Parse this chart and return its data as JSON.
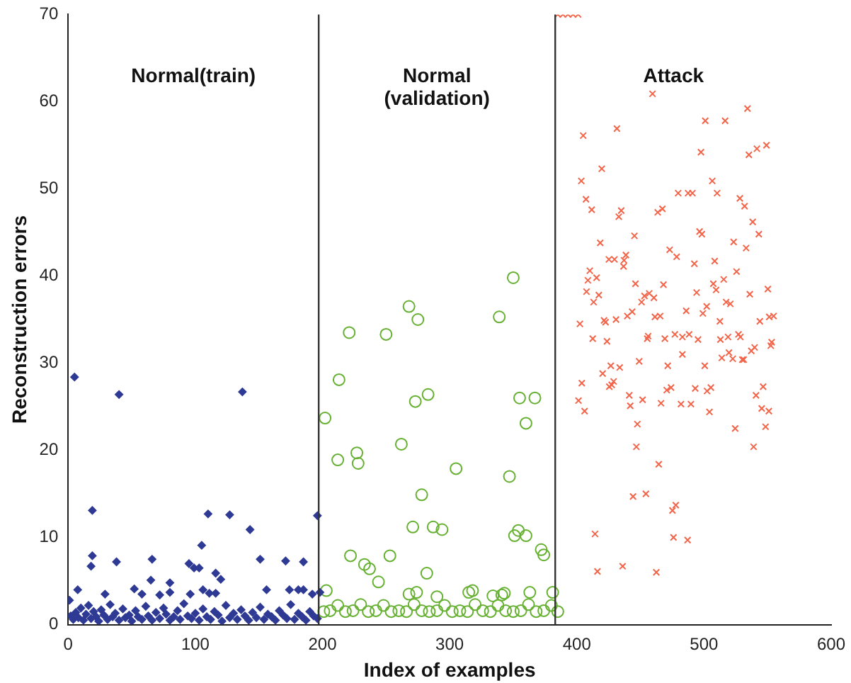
{
  "chart_data": {
    "type": "scatter",
    "xlabel": "Index of examples",
    "ylabel": "Reconstruction errors",
    "xlim": [
      0,
      600
    ],
    "xticks": [
      0,
      100,
      200,
      300,
      400,
      500,
      600
    ],
    "ylim": [
      0,
      70
    ],
    "yticks": [
      0,
      10,
      20,
      30,
      40,
      50,
      60,
      70
    ],
    "grid": false,
    "legend": false,
    "annotations": [
      "Normal(train)",
      "Normal\n(validation)",
      "Attack"
    ],
    "ref_lines": [
      {
        "axis": "x",
        "value": 197,
        "color": "#333333"
      },
      {
        "axis": "x",
        "value": 383,
        "color": "#333333"
      }
    ],
    "series": [
      {
        "color": "#2e3a94",
        "marker": "diamond",
        "x": [
          5,
          40,
          137,
          19,
          110,
          127,
          196,
          143,
          105,
          19,
          18,
          38,
          66,
          95,
          99,
          103,
          151,
          171,
          185,
          116,
          120,
          65,
          80,
          7.5,
          52,
          106,
          111,
          156,
          174,
          181,
          185,
          29,
          58,
          72,
          80,
          96,
          116,
          192,
          198,
          1,
          2,
          4,
          6,
          8,
          10,
          12,
          14,
          16,
          18,
          20,
          22,
          24,
          26,
          28,
          31,
          33,
          35,
          37,
          40,
          43,
          45,
          48,
          50,
          53,
          55,
          58,
          61,
          63,
          66,
          69,
          72,
          75,
          77,
          80,
          83,
          86,
          88,
          91,
          94,
          97,
          100,
          103,
          106,
          109,
          112,
          115,
          118,
          121,
          124,
          127,
          130,
          133,
          136,
          139,
          142,
          145,
          148,
          151,
          154,
          157,
          160,
          163,
          166,
          169,
          172,
          175,
          178,
          181,
          184,
          187,
          190,
          193,
          196
        ],
        "values": [
          28.4,
          26.4,
          26.7,
          13.1,
          12.7,
          12.6,
          12.5,
          10.9,
          9.1,
          7.9,
          6.7,
          7.2,
          7.5,
          7,
          6.5,
          6.5,
          7.5,
          7.3,
          7.2,
          5.9,
          5.2,
          5.1,
          4.8,
          4,
          4.1,
          4,
          3.6,
          4,
          4,
          4,
          4,
          3.5,
          3.5,
          3.4,
          3.7,
          3.5,
          3.6,
          3.5,
          3.7,
          2.8,
          1,
          0.6,
          1.4,
          0.8,
          1.9,
          0.5,
          1.2,
          2.2,
          0.7,
          1.5,
          0.9,
          0.4,
          1.7,
          1.1,
          0.6,
          2.3,
          0.9,
          1.3,
          0.5,
          1.8,
          0.8,
          1.1,
          0.4,
          1.6,
          0.9,
          0.6,
          2.1,
          1,
          0.5,
          1.4,
          0.7,
          1.9,
          1.2,
          0.5,
          0.9,
          1.6,
          0.6,
          2.4,
          1,
          0.7,
          1.3,
          0.5,
          1.8,
          0.9,
          0.6,
          1.5,
          1.1,
          0.4,
          2.2,
          0.8,
          1.3,
          0.6,
          1.7,
          1,
          0.5,
          1.4,
          0.8,
          2,
          0.6,
          1.2,
          0.9,
          0.5,
          1.6,
          1.1,
          0.7,
          2.3,
          0.6,
          1.3,
          0.9,
          0.5,
          1.5,
          1,
          0.7
        ]
      },
      {
        "color": "#66b032",
        "marker": "circle",
        "x": [
          350,
          268,
          275,
          339,
          221,
          250,
          213,
          283,
          273,
          355,
          367,
          202,
          360,
          262,
          212,
          227,
          228,
          305,
          347,
          278,
          271,
          287,
          294,
          354,
          351,
          360,
          372,
          374,
          222,
          233,
          237,
          253,
          244,
          282,
          203,
          268,
          274,
          290,
          315,
          318,
          334,
          341,
          343,
          363,
          381,
          201,
          206,
          212,
          218,
          224,
          230,
          236,
          242,
          248,
          254,
          260,
          266,
          272,
          278,
          284,
          290,
          296,
          302,
          308,
          314,
          320,
          326,
          332,
          338,
          344,
          350,
          356,
          362,
          368,
          374,
          380,
          385
        ],
        "values": [
          39.8,
          36.5,
          35,
          35.3,
          33.5,
          33.3,
          28.1,
          26.4,
          25.6,
          26,
          26,
          23.7,
          23.1,
          20.7,
          18.9,
          19.7,
          18.5,
          17.9,
          17,
          14.9,
          11.2,
          11.2,
          10.9,
          10.8,
          10.2,
          10.2,
          8.6,
          8,
          7.9,
          6.9,
          6.4,
          7.9,
          4.9,
          5.9,
          3.9,
          3.5,
          3.7,
          3.2,
          3.7,
          3.9,
          3.3,
          3.4,
          3.6,
          3.7,
          3.7,
          1.5,
          1.6,
          2.2,
          1.5,
          1.6,
          2.3,
          1.5,
          1.6,
          2.2,
          1.5,
          1.6,
          1.5,
          2.3,
          1.6,
          1.5,
          1.6,
          2.2,
          1.5,
          1.6,
          1.5,
          2.3,
          1.6,
          1.5,
          2.2,
          1.6,
          1.5,
          1.6,
          2.3,
          1.5,
          1.6,
          2.2,
          1.5
        ]
      },
      {
        "color": "#f2654a",
        "marker": "cross",
        "x": [
          459.5,
          534.2,
          501,
          516.6,
          405,
          431.5,
          497.6,
          549.1,
          541.6,
          535.3,
          419.6,
          403.5,
          506.5,
          479.7,
          487.5,
          490.9,
          510.3,
          407.2,
          411.7,
          434.9,
          433,
          463.6,
          467.3,
          528.2,
          531.9,
          538.3,
          445.3,
          496.5,
          498.3,
          543.1,
          418.4,
          523.3,
          533.1,
          473,
          478.5,
          438.6,
          437.1,
          436.7,
          425.2,
          429.6,
          492.4,
          508.4,
          410.2,
          408.7,
          415.5,
          525.6,
          515.5,
          446.1,
          468.1,
          507.3,
          509.5,
          550.2,
          407.6,
          417.3,
          494.2,
          536,
          453.2,
          456.9,
          450.9,
          460.6,
          413.2,
          517.4,
          520.7,
          502.1,
          499.1,
          486,
          443.5,
          439.7,
          430.8,
          461.4,
          465.5,
          421.4,
          422.6,
          402.4,
          512.5,
          543.9,
          551.3,
          554.7,
          412.5,
          423.7,
          456.1,
          455.4,
          469.2,
          477.1,
          483,
          488.3,
          495.3,
          512.9,
          518.9,
          527.1,
          528.6,
          553.2,
          552.5,
          539.8,
          537.2,
          519.6,
          522.6,
          514,
          530.1,
          531.2,
          483,
          449,
          471.5,
          500.6,
          426.7,
          433.7,
          420.3,
          403.9,
          427.4,
          425.5,
          428.9,
          470.7,
          474.1,
          493.1,
          502.4,
          505.4,
          546.5,
          401.3,
          441.2,
          442,
          451.7,
          466.2,
          481.9,
          489.7,
          504.3,
          540.9,
          545.4,
          551,
          406.1,
          447.6,
          524.5,
          548.4,
          446.8,
          539,
          464.4,
          444.2,
          454.3,
          477.8,
          475.2,
          414.3,
          476,
          487.1,
          416.2,
          436,
          462.5,
          385,
          389,
          393,
          397,
          401
        ],
        "values": [
          60.9,
          59.2,
          57.8,
          57.8,
          56.1,
          56.9,
          54.2,
          55,
          54.6,
          53.9,
          52.3,
          50.9,
          50.9,
          49.5,
          49.5,
          49.5,
          49.5,
          48.8,
          47.6,
          47.5,
          46.8,
          47.3,
          47.7,
          48.9,
          48,
          46.2,
          44.6,
          45.1,
          44.8,
          44.8,
          43.8,
          43.9,
          43.2,
          43,
          42.2,
          42.4,
          41.8,
          41.1,
          41.9,
          41.9,
          41.4,
          41.7,
          40.6,
          39.5,
          39.8,
          40.5,
          39.6,
          39.1,
          39,
          39.1,
          38.4,
          38.5,
          38.2,
          37.8,
          38.1,
          37.9,
          37.7,
          38,
          37,
          37.5,
          37,
          37,
          36.8,
          36.5,
          35.7,
          36,
          35.9,
          35.4,
          35,
          35.3,
          35.4,
          34.9,
          34.7,
          34.5,
          34.8,
          34.8,
          35.3,
          35.4,
          32.8,
          32.5,
          33.1,
          32.8,
          32.8,
          33.3,
          33,
          33.3,
          32.7,
          32.7,
          33,
          33.3,
          33,
          32.4,
          32,
          31.8,
          31.4,
          31.2,
          30.5,
          30.6,
          30.4,
          30.4,
          31,
          30.2,
          29.7,
          29.7,
          29.7,
          29.5,
          28.8,
          27.7,
          27.5,
          27.3,
          27.9,
          26.9,
          27.2,
          27.1,
          26.8,
          27.2,
          27.3,
          25.7,
          26.3,
          25.1,
          25.8,
          25.4,
          25.3,
          25.3,
          24.4,
          26.3,
          24.8,
          24.5,
          24.5,
          23,
          22.5,
          22.7,
          20.4,
          20.4,
          18.4,
          14.7,
          15,
          13.7,
          13.1,
          10.4,
          10,
          9.7,
          6.1,
          6.7,
          6,
          70,
          70,
          70,
          70,
          70
        ]
      }
    ]
  }
}
